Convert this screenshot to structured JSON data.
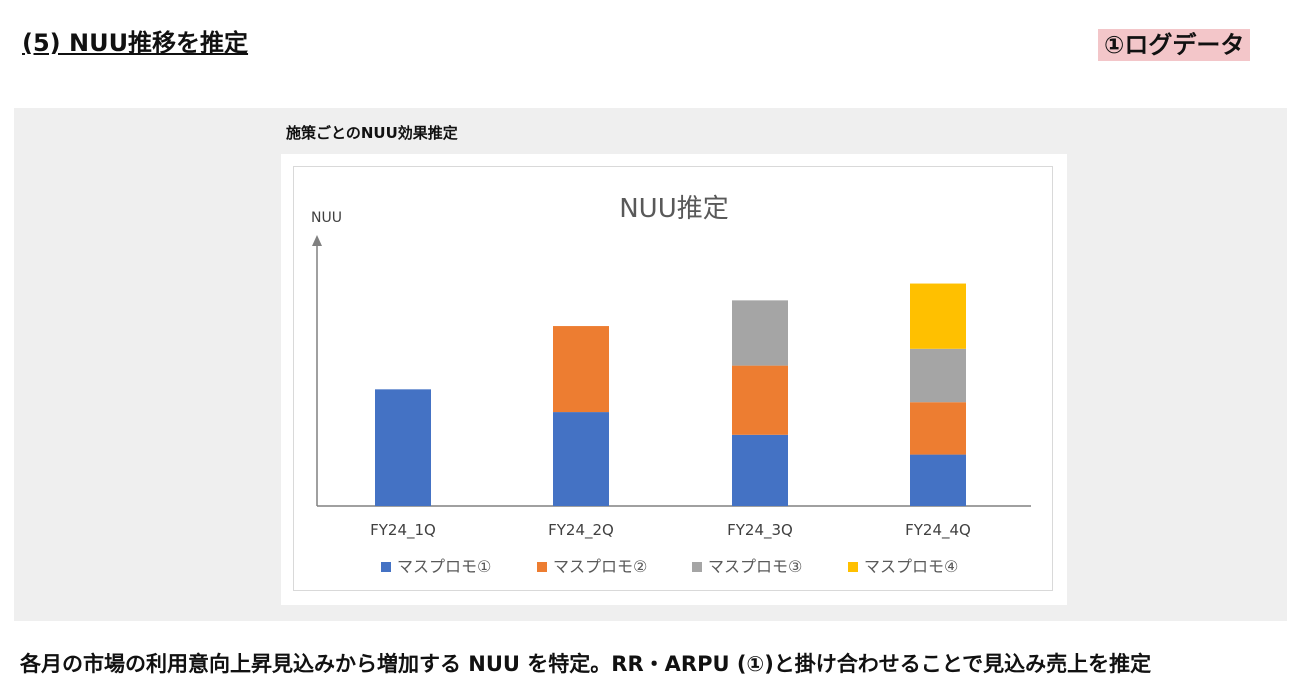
{
  "header": {
    "title": "(5) NUU推移を推定",
    "tag": "①ログデータ"
  },
  "panel": {
    "title": "施策ごとのNUU効果推定"
  },
  "footer": {
    "text": "各月の市場の利用意向上昇見込みから増加する NUU を特定。RR・ARPU (①)と掛け合わせることで見込み売上を推定"
  },
  "chart_data": {
    "type": "bar",
    "stacked": true,
    "title": "NUU推定",
    "ylabel": "NUU",
    "xlabel": "",
    "categories": [
      "FY24_1Q",
      "FY24_2Q",
      "FY24_3Q",
      "FY24_4Q"
    ],
    "series": [
      {
        "name": "マスプロモ①",
        "color": "#4472C4",
        "values": [
          118,
          95,
          72,
          52
        ]
      },
      {
        "name": "マスプロモ②",
        "color": "#ED7D31",
        "values": [
          0,
          87,
          70,
          53
        ]
      },
      {
        "name": "マスプロモ③",
        "color": "#A5A5A5",
        "values": [
          0,
          0,
          66,
          54
        ]
      },
      {
        "name": "マスプロモ④",
        "color": "#FFC000",
        "values": [
          0,
          0,
          0,
          66
        ]
      }
    ],
    "ylim": [
      0,
      265
    ],
    "grid": false,
    "legend": "bottom",
    "axis_color": "#808080",
    "title_color": "#595959",
    "label_color": "#404040"
  }
}
